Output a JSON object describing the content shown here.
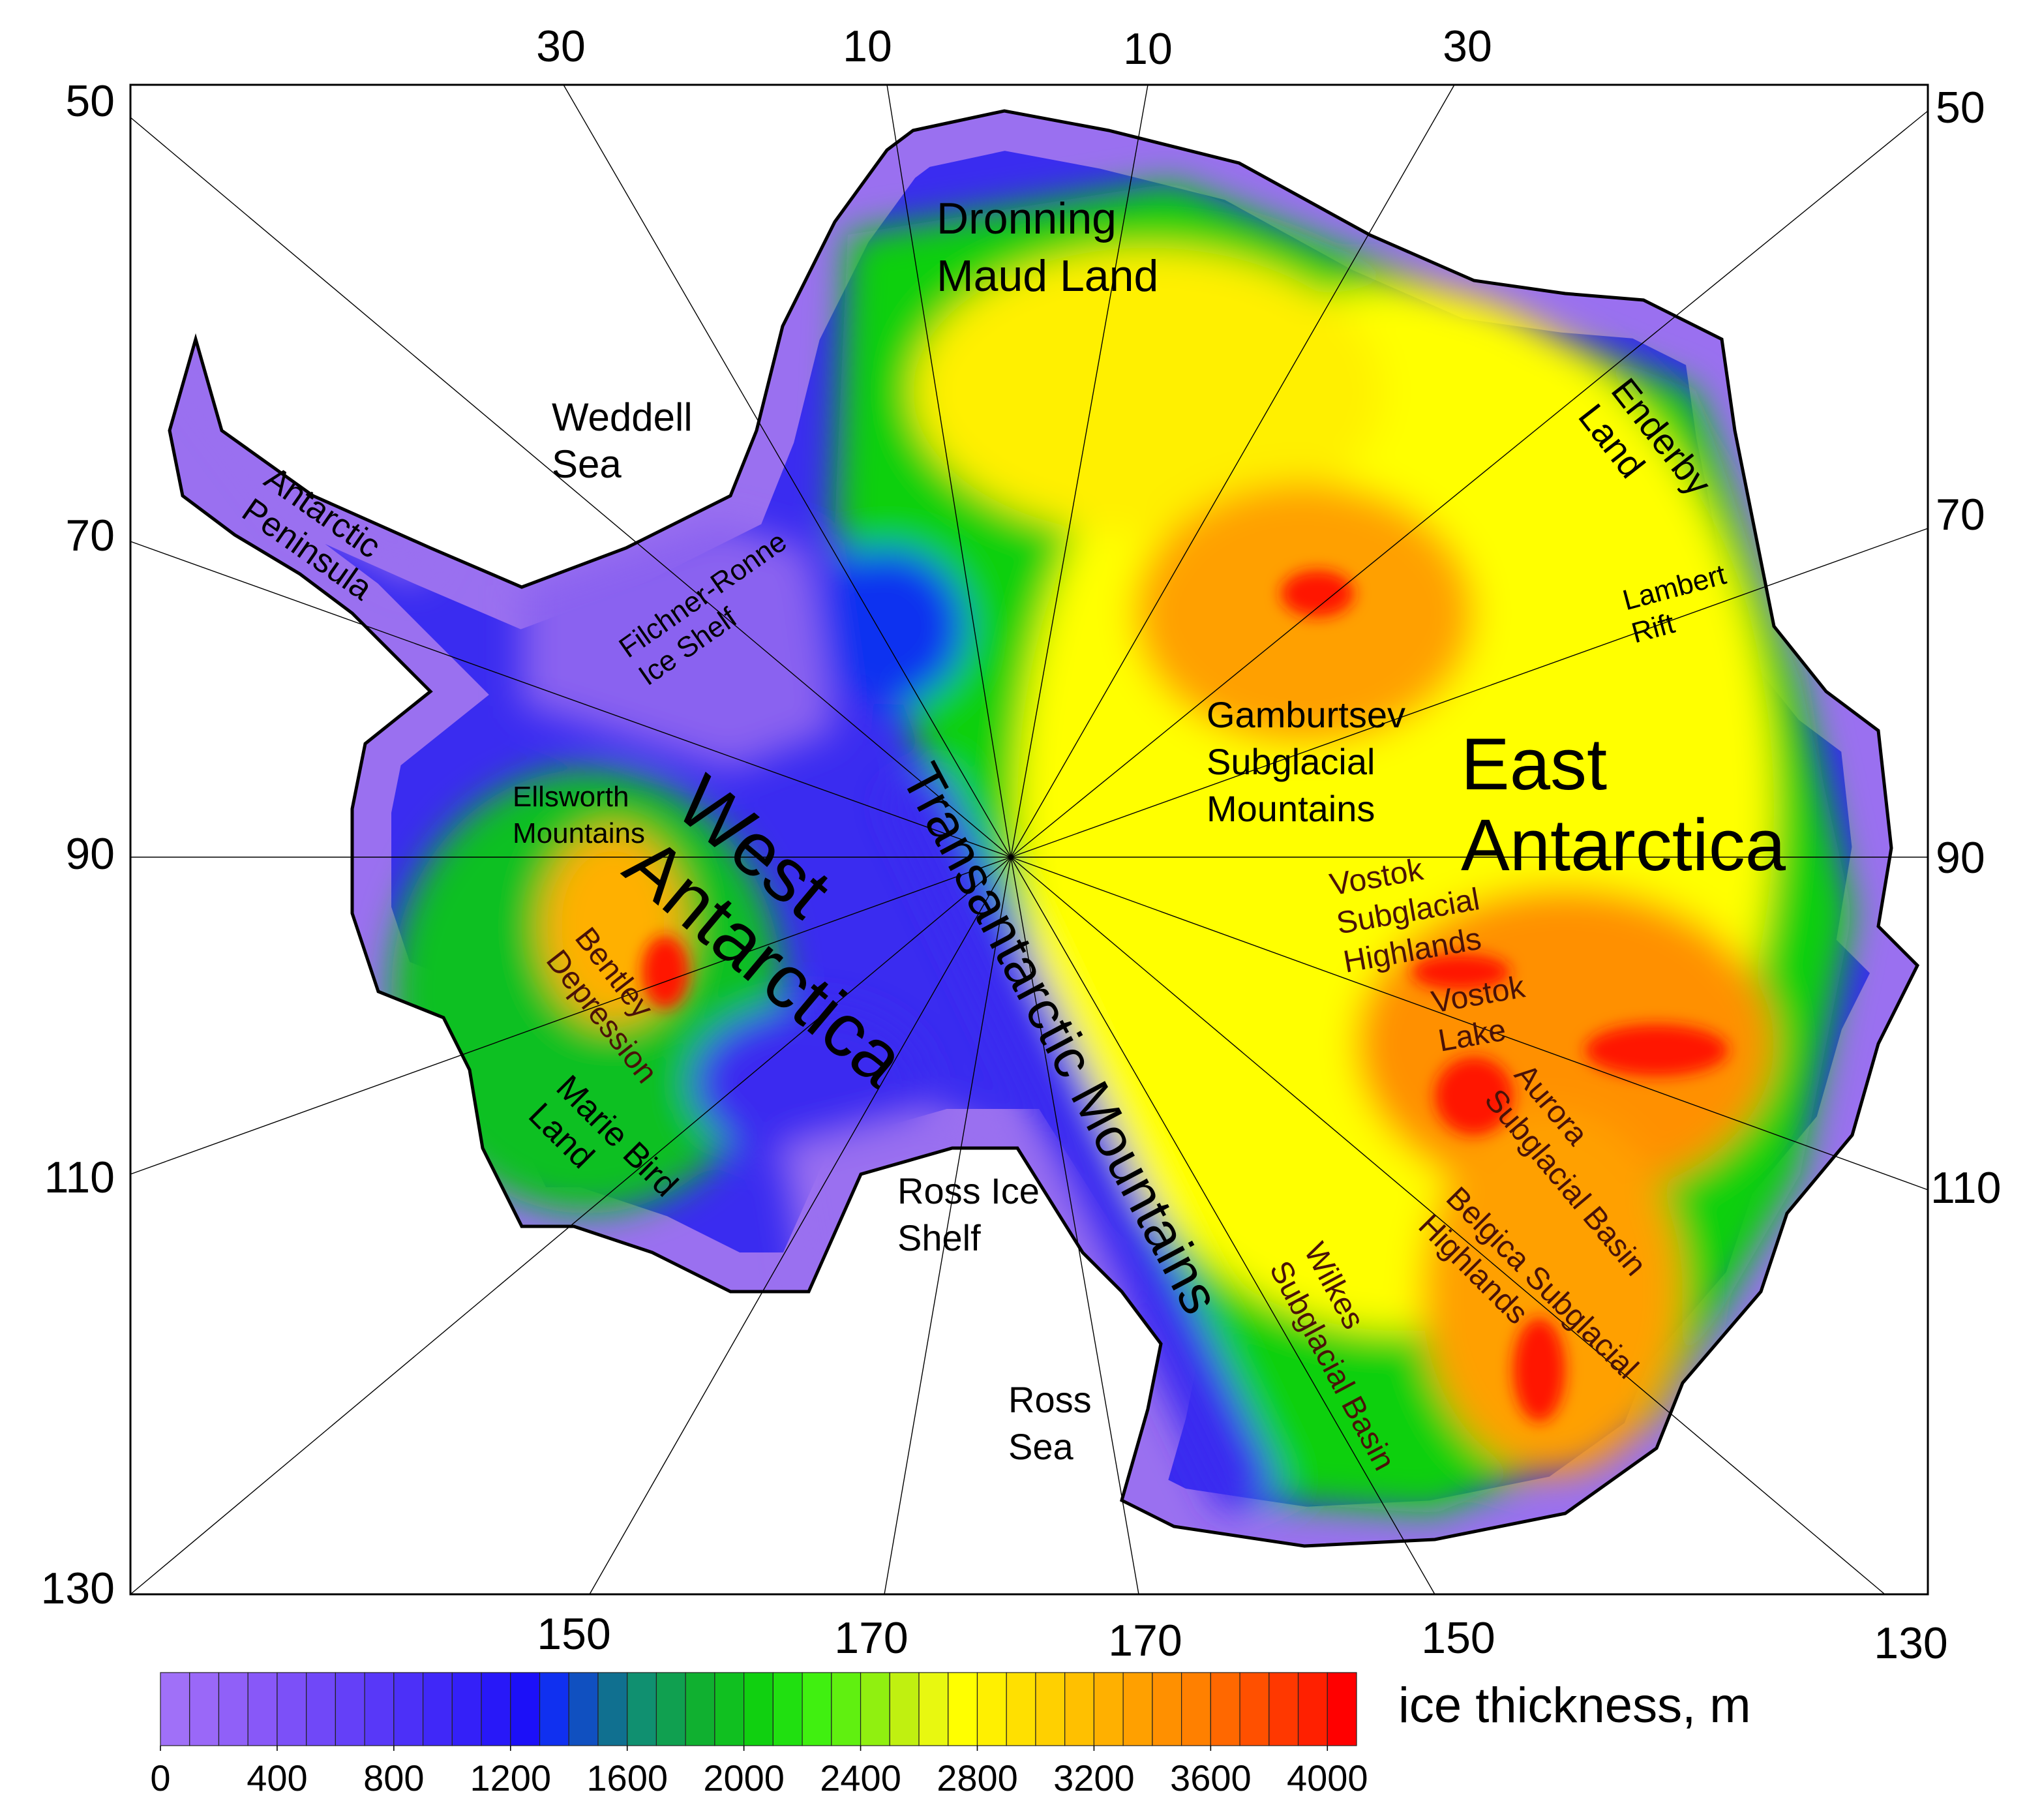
{
  "graticule": {
    "top": [
      30,
      10,
      10,
      30
    ],
    "left": [
      50,
      70,
      90,
      110,
      130
    ],
    "right": [
      50,
      70,
      90,
      110
    ],
    "bottom": [
      150,
      170,
      170,
      150,
      130
    ]
  },
  "map": {
    "labels": [
      {
        "lines": [
          "Dronning",
          "Maud Land"
        ]
      },
      {
        "lines": [
          "Weddell",
          "Sea"
        ]
      },
      {
        "lines": [
          "Antarctic",
          "Peninsula"
        ]
      },
      {
        "lines": [
          "Filchner-Ronne",
          "Ice Shelf"
        ]
      },
      {
        "lines": [
          "Enderby",
          "Land"
        ]
      },
      {
        "lines": [
          "Lambert",
          "Rift"
        ]
      },
      {
        "lines": [
          "Gamburtsev",
          "Subglacial",
          "Mountains"
        ]
      },
      {
        "lines": [
          "East",
          "Antarctica"
        ]
      },
      {
        "lines": [
          "Ellsworth",
          "Mountains"
        ]
      },
      {
        "lines": [
          "West",
          "Antarctica"
        ]
      },
      {
        "lines": [
          "Transantarctic Mountains"
        ]
      },
      {
        "lines": [
          "Vostok",
          "Subglacial",
          "Highlands"
        ]
      },
      {
        "lines": [
          "Vostok",
          "Lake"
        ]
      },
      {
        "lines": [
          "Aurora",
          "Subglacial Basin"
        ]
      },
      {
        "lines": [
          "Belgica Subglacial",
          "Highlands"
        ]
      },
      {
        "lines": [
          "Wilkes",
          "Subglacial Basin"
        ]
      },
      {
        "lines": [
          "Bentley",
          "Depression"
        ]
      },
      {
        "lines": [
          "Marie Bird",
          "Land"
        ]
      },
      {
        "lines": [
          "Ross Ice",
          "Shelf"
        ]
      },
      {
        "lines": [
          "Ross",
          "Sea"
        ]
      }
    ]
  },
  "colorbar": {
    "label": "ice thickness, m",
    "lim": [
      0,
      4100
    ],
    "ticks": [
      0,
      400,
      800,
      1200,
      1600,
      2000,
      2400,
      2800,
      3200,
      3600,
      4000
    ],
    "colors": [
      "#a070f8",
      "#9a68f8",
      "#9060f8",
      "#8858f8",
      "#7c50f8",
      "#7048f8",
      "#6440f8",
      "#5838f8",
      "#4c30f8",
      "#4028f8",
      "#3420f8",
      "#2818f8",
      "#1c10f8",
      "#1030f0",
      "#1050c0",
      "#107090",
      "#109070",
      "#10a050",
      "#10b030",
      "#10c020",
      "#10d010",
      "#20e010",
      "#40f010",
      "#60f010",
      "#90f010",
      "#c0f010",
      "#e8f810",
      "#ffff00",
      "#fff000",
      "#ffe000",
      "#ffd000",
      "#ffc000",
      "#ffb000",
      "#ffa000",
      "#ff9000",
      "#ff8000",
      "#ff6800",
      "#ff5000",
      "#ff3800",
      "#ff2000",
      "#ff0000"
    ]
  }
}
